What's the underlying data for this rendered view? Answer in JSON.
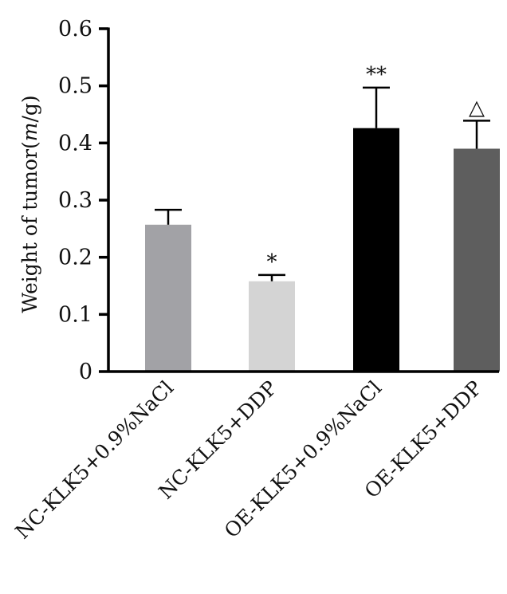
{
  "chart_data": {
    "type": "bar",
    "title": "",
    "xlabel": "",
    "ylabel_prefix": "Weight of tumor(",
    "ylabel_italic": "m",
    "ylabel_suffix": "/g)",
    "ylim": [
      0,
      0.6
    ],
    "yticks": [
      "0",
      "0.1",
      "0.2",
      "0.3",
      "0.4",
      "0.5",
      "0.6"
    ],
    "grid": false,
    "legend": "none",
    "categories": [
      "NC-KLK5+0.9%NaCl",
      "NC-KLK5+DDP",
      "OE-KLK5+0.9%NaCl",
      "OE-KLK5+DDP"
    ],
    "values": [
      0.257,
      0.158,
      0.426,
      0.39
    ],
    "error_upper": [
      0.283,
      0.169,
      0.497,
      0.439
    ],
    "significance": [
      "",
      "*",
      "**",
      "△"
    ],
    "colors": [
      "#a2a2a6",
      "#d4d4d4",
      "#000000",
      "#5e5e5e"
    ]
  }
}
